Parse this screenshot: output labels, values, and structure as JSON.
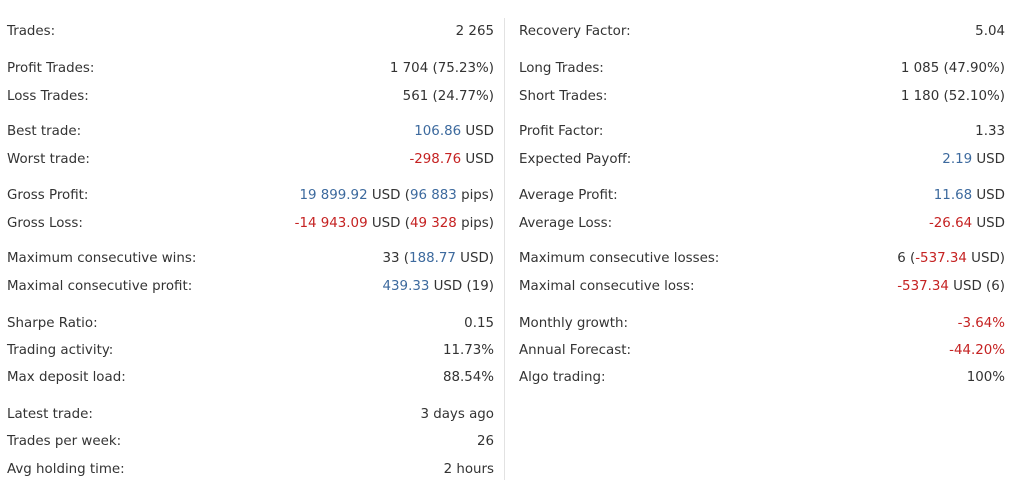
{
  "colors": {
    "positive": "#3d6a9e",
    "negative": "#c52222",
    "text": "#333333"
  },
  "left": {
    "trades": {
      "label": "Trades:",
      "value": "2 265"
    },
    "profit_trades": {
      "label": "Profit Trades:",
      "value": "1 704 (75.23%)"
    },
    "loss_trades": {
      "label": "Loss Trades:",
      "value": "561 (24.77%)"
    },
    "best_trade": {
      "label": "Best trade:",
      "amount": "106.86",
      "unit": " USD"
    },
    "worst_trade": {
      "label": "Worst trade:",
      "amount": "-298.76",
      "unit": " USD"
    },
    "gross_profit": {
      "label": "Gross Profit:",
      "amount": "19 899.92",
      "unit": " USD (",
      "pips": "96 883",
      "pips_suffix": " pips)"
    },
    "gross_loss": {
      "label": "Gross Loss:",
      "amount": "-14 943.09",
      "unit": " USD (",
      "pips": "49 328",
      "pips_suffix": " pips)"
    },
    "max_consec_wins": {
      "label": "Maximum consecutive wins:",
      "count": "33 (",
      "amount": "188.77",
      "suffix": " USD)"
    },
    "max_consec_profit": {
      "label": "Maximal consecutive profit:",
      "amount": "439.33",
      "suffix": " USD (19)"
    },
    "sharpe": {
      "label": "Sharpe Ratio:",
      "value": "0.15"
    },
    "activity": {
      "label": "Trading activity:",
      "value": "11.73%"
    },
    "deposit_load": {
      "label": "Max deposit load:",
      "value": "88.54%"
    },
    "latest_trade": {
      "label": "Latest trade:",
      "value": "3 days ago"
    },
    "per_week": {
      "label": "Trades per week:",
      "value": "26"
    },
    "holding": {
      "label": "Avg holding time:",
      "value": "2 hours"
    }
  },
  "right": {
    "recovery": {
      "label": "Recovery Factor:",
      "value": "5.04"
    },
    "long_trades": {
      "label": "Long Trades:",
      "value": "1 085 (47.90%)"
    },
    "short_trades": {
      "label": "Short Trades:",
      "value": "1 180 (52.10%)"
    },
    "profit_factor": {
      "label": "Profit Factor:",
      "value": "1.33"
    },
    "expected_payoff": {
      "label": "Expected Payoff:",
      "amount": "2.19",
      "unit": " USD"
    },
    "avg_profit": {
      "label": "Average Profit:",
      "amount": "11.68",
      "unit": " USD"
    },
    "avg_loss": {
      "label": "Average Loss:",
      "amount": "-26.64",
      "unit": " USD"
    },
    "max_consec_losses": {
      "label": "Maximum consecutive losses:",
      "count": "6 (",
      "amount": "-537.34",
      "suffix": " USD)"
    },
    "max_consec_loss": {
      "label": "Maximal consecutive loss:",
      "amount": "-537.34",
      "suffix": " USD (6)"
    },
    "monthly_growth": {
      "label": "Monthly growth:",
      "value": "-3.64%"
    },
    "annual_forecast": {
      "label": "Annual Forecast:",
      "value": "-44.20%"
    },
    "algo_trading": {
      "label": "Algo trading:",
      "value": "100%"
    }
  }
}
